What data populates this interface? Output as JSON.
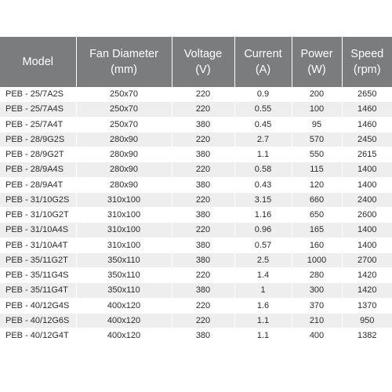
{
  "table": {
    "headers": [
      {
        "line1": "Model",
        "line2": ""
      },
      {
        "line1": "Fan Diameter",
        "line2": "(mm)"
      },
      {
        "line1": "Voltage",
        "line2": "(V)"
      },
      {
        "line1": "Current",
        "line2": "(A)"
      },
      {
        "line1": "Power",
        "line2": "(W)"
      },
      {
        "line1": "Speed",
        "line2": "(rpm)"
      }
    ],
    "rows": [
      [
        "PEB - 25/7A2S",
        "250x70",
        "220",
        "0.9",
        "200",
        "2650"
      ],
      [
        "PEB - 25/7A4S",
        "250x70",
        "220",
        "0.55",
        "100",
        "1460"
      ],
      [
        "PEB - 25/7A4T",
        "250x70",
        "380",
        "0.45",
        "95",
        "1460"
      ],
      [
        "PEB - 28/9G2S",
        "280x90",
        "220",
        "2.7",
        "570",
        "2450"
      ],
      [
        "PEB - 28/9G2T",
        "280x90",
        "380",
        "1.1",
        "550",
        "2615"
      ],
      [
        "PEB - 28/9A4S",
        "280x90",
        "220",
        "0.58",
        "115",
        "1400"
      ],
      [
        "PEB - 28/9A4T",
        "280x90",
        "380",
        "0.43",
        "120",
        "1400"
      ],
      [
        "PEB - 31/10G2S",
        "310x100",
        "220",
        "3.15",
        "660",
        "2400"
      ],
      [
        "PEB - 31/10G2T",
        "310x100",
        "380",
        "1.16",
        "650",
        "2600"
      ],
      [
        "PEB - 31/10A4S",
        "310x100",
        "220",
        "0.96",
        "165",
        "1400"
      ],
      [
        "PEB - 31/10A4T",
        "310x100",
        "380",
        "0.57",
        "160",
        "1400"
      ],
      [
        "PEB - 35/11G2T",
        "350x110",
        "380",
        "2.5",
        "1000",
        "2700"
      ],
      [
        "PEB - 35/11G4S",
        "350x110",
        "220",
        "1.4",
        "280",
        "1420"
      ],
      [
        "PEB - 35/11G4T",
        "350x110",
        "380",
        "1",
        "300",
        "1420"
      ],
      [
        "PEB - 40/12G4S",
        "400x120",
        "220",
        "1.6",
        "370",
        "1370"
      ],
      [
        "PEB - 40/12G6S",
        "400x120",
        "220",
        "1.1",
        "210",
        "950"
      ],
      [
        "PEB - 40/12G4T",
        "400x120",
        "380",
        "1.1",
        "400",
        "1382"
      ]
    ]
  }
}
